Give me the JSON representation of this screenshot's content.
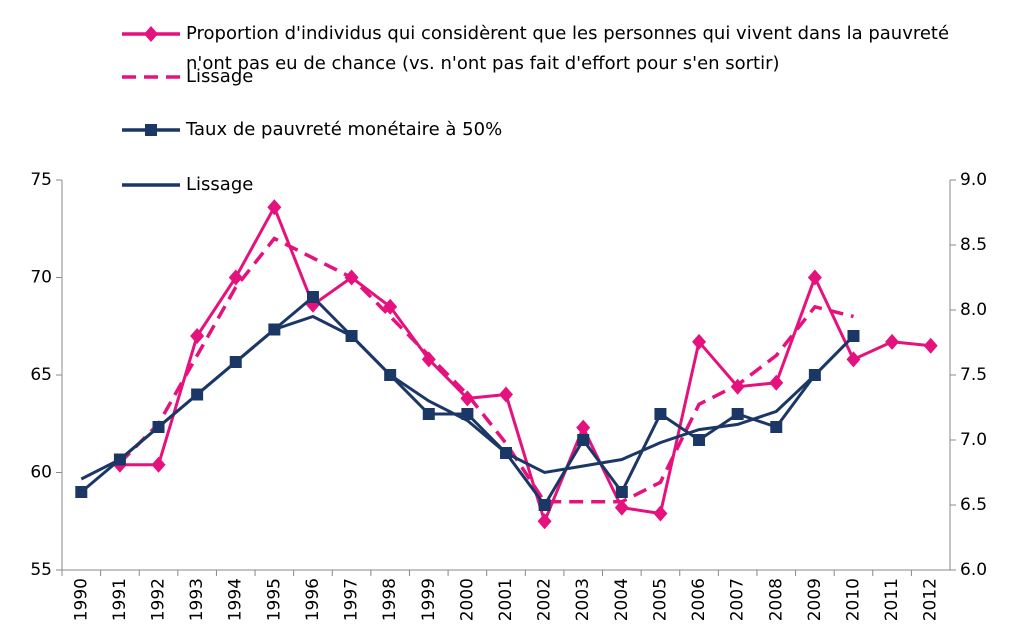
{
  "chart_data": {
    "type": "line",
    "categories": [
      "1990",
      "1991",
      "1992",
      "1993",
      "1994",
      "1995",
      "1996",
      "1997",
      "1998",
      "1999",
      "2000",
      "2001",
      "2002",
      "2003",
      "2004",
      "2005",
      "2006",
      "2007",
      "2008",
      "2009",
      "2010",
      "2011",
      "2012"
    ],
    "ylim": [
      55,
      75
    ],
    "yticks": [
      55,
      60,
      65,
      70,
      75
    ],
    "y2lim": [
      6,
      9
    ],
    "y2ticks": [
      {
        "value": 6,
        "label": "6.0"
      },
      6.5,
      {
        "value": 7,
        "label": "7.0"
      },
      7.5,
      {
        "value": 8,
        "label": "8.0"
      },
      8.5,
      {
        "value": 9,
        "label": "9.0"
      }
    ],
    "series": [
      {
        "name": "Proportion d'individus qui considèrent que les personnes qui vivent dans la pauvreté n'ont pas eu de chance (vs. n'ont pas fait d'effort pour s'en sortir)",
        "color": "#e5127d",
        "marker": "diamond",
        "dashed": false,
        "values": [
          null,
          60.4,
          60.4,
          67.0,
          70.0,
          73.6,
          68.6,
          70.0,
          68.5,
          65.8,
          63.8,
          64.0,
          57.5,
          62.3,
          58.2,
          57.9,
          66.7,
          64.4,
          64.6,
          70.0,
          65.8,
          66.7,
          66.5
        ]
      },
      {
        "name": "Lissage",
        "color": "#e5127d",
        "marker": "none",
        "dashed": true,
        "values": [
          null,
          60.5,
          62.5,
          66.0,
          69.5,
          72.0,
          71.0,
          70.0,
          68.0,
          66.0,
          64.0,
          61.5,
          58.5,
          58.5,
          58.5,
          59.5,
          63.5,
          64.5,
          66.0,
          68.5,
          68.0,
          null,
          null
        ]
      },
      {
        "name": "Taux de pauvreté monétaire à 50%",
        "color": "#1b3766",
        "marker": "square",
        "dashed": false,
        "axis": "y2",
        "values": [
          6.6,
          6.85,
          7.1,
          7.35,
          7.6,
          7.85,
          8.1,
          7.8,
          7.5,
          7.2,
          7.2,
          6.9,
          6.5,
          7.0,
          6.6,
          7.2,
          7.0,
          7.2,
          7.1,
          7.5,
          7.8,
          null,
          null
        ]
      },
      {
        "name": "Lissage",
        "color": "#1b3766",
        "marker": "none",
        "dashed": false,
        "axis": "y2",
        "values": [
          6.7,
          6.85,
          7.1,
          7.35,
          7.6,
          7.85,
          7.95,
          7.8,
          7.5,
          7.3,
          7.15,
          6.9,
          6.75,
          6.8,
          6.85,
          6.98,
          7.08,
          7.12,
          7.22,
          7.5,
          7.8,
          null,
          null
        ]
      }
    ]
  }
}
